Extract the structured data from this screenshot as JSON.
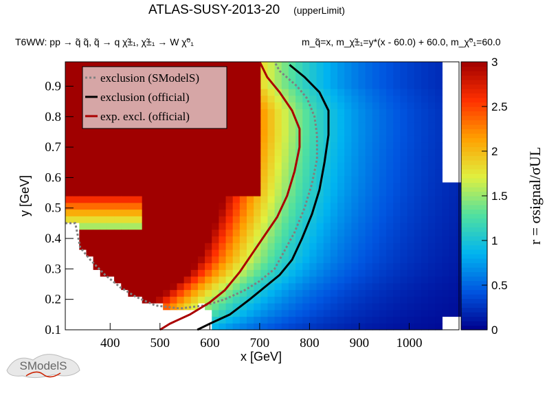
{
  "header": {
    "title": "ATLAS-SUSY-2013-20",
    "subtitle": "(upperLimit)",
    "process": "T6WW: pp → q̃ q̃, q̃ → q χ̃±₁, χ̃±₁ → W χ̃⁰₁",
    "masses": "m_q̃=x, m_χ̃±₁=y*(x - 60.0) + 60.0, m_χ̃⁰₁=60.0"
  },
  "logo": {
    "text": "SModelS"
  },
  "chart_data": {
    "type": "heatmap",
    "xlabel": "x [GeV]",
    "ylabel": "y [GeV]",
    "colorbar_label": "r = σsignal/σUL",
    "xlim": [
      310,
      1100
    ],
    "ylim": [
      0.1,
      0.98
    ],
    "zlim": [
      0,
      3
    ],
    "x_ticks": [
      400,
      500,
      600,
      700,
      800,
      900,
      1000
    ],
    "y_ticks": [
      0.1,
      0.2,
      0.3,
      0.4,
      0.5,
      0.6,
      0.7,
      0.8,
      0.9
    ],
    "z_ticks": [
      0,
      0.5,
      1,
      1.5,
      2,
      2.5,
      3
    ],
    "colormap": [
      "#00008c",
      "#0055e0",
      "#00b4f0",
      "#50e0a0",
      "#e0f040",
      "#ffa000",
      "#ff3000",
      "#a00000"
    ],
    "legend": {
      "position": "top-left",
      "entries": [
        {
          "label": "exclusion (SModelS)",
          "color": "#808080",
          "style": "dotted"
        },
        {
          "label": "exclusion (official)",
          "color": "#000000",
          "style": "solid"
        },
        {
          "label": "exp. excl. (official)",
          "color": "#aa0000",
          "style": "solid"
        }
      ]
    },
    "series": [
      {
        "name": "exclusion (SModelS)",
        "points": [
          [
            310,
            0.45
          ],
          [
            330,
            0.45
          ],
          [
            340,
            0.37
          ],
          [
            360,
            0.33
          ],
          [
            390,
            0.28
          ],
          [
            420,
            0.24
          ],
          [
            450,
            0.21
          ],
          [
            490,
            0.18
          ],
          [
            540,
            0.17
          ],
          [
            590,
            0.18
          ],
          [
            630,
            0.2
          ],
          [
            670,
            0.23
          ],
          [
            700,
            0.26
          ],
          [
            730,
            0.3
          ],
          [
            750,
            0.36
          ],
          [
            770,
            0.42
          ],
          [
            790,
            0.5
          ],
          [
            805,
            0.58
          ],
          [
            815,
            0.66
          ],
          [
            815,
            0.74
          ],
          [
            810,
            0.8
          ],
          [
            795,
            0.86
          ],
          [
            775,
            0.9
          ],
          [
            740,
            0.95
          ],
          [
            730,
            0.98
          ]
        ]
      },
      {
        "name": "exclusion (official)",
        "points": [
          [
            575,
            0.1
          ],
          [
            600,
            0.12
          ],
          [
            640,
            0.15
          ],
          [
            680,
            0.2
          ],
          [
            710,
            0.24
          ],
          [
            740,
            0.28
          ],
          [
            765,
            0.33
          ],
          [
            785,
            0.4
          ],
          [
            805,
            0.48
          ],
          [
            820,
            0.56
          ],
          [
            830,
            0.65
          ],
          [
            838,
            0.74
          ],
          [
            838,
            0.82
          ],
          [
            820,
            0.88
          ],
          [
            790,
            0.93
          ],
          [
            760,
            0.97
          ]
        ]
      },
      {
        "name": "exp. excl. (official)",
        "points": [
          [
            500,
            0.1
          ],
          [
            520,
            0.12
          ],
          [
            560,
            0.15
          ],
          [
            600,
            0.19
          ],
          [
            630,
            0.23
          ],
          [
            660,
            0.29
          ],
          [
            685,
            0.35
          ],
          [
            710,
            0.41
          ],
          [
            735,
            0.47
          ],
          [
            755,
            0.54
          ],
          [
            770,
            0.62
          ],
          [
            780,
            0.7
          ],
          [
            780,
            0.76
          ],
          [
            765,
            0.82
          ],
          [
            740,
            0.88
          ],
          [
            715,
            0.93
          ],
          [
            700,
            0.98
          ]
        ]
      }
    ]
  }
}
